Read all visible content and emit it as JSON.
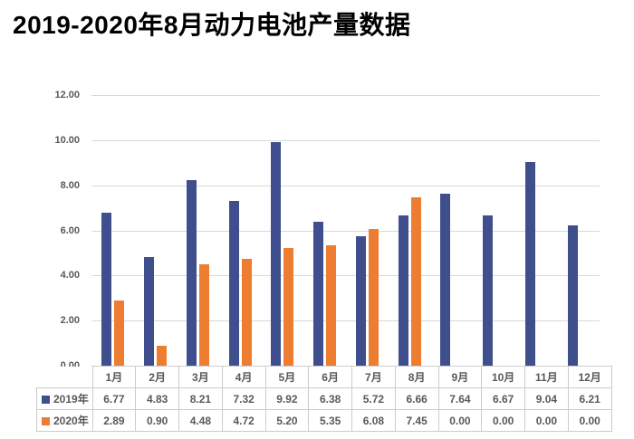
{
  "title": "2019-2020年8月动力电池产量数据",
  "colors": {
    "series_2019": "#3f4e8c",
    "series_2020": "#ed7d31",
    "gridline": "#d9d9d9",
    "axis_text": "#595959",
    "table_border": "#cccccc",
    "title_text": "#000000",
    "background": "#ffffff"
  },
  "chart_data": {
    "type": "bar",
    "title": "2019-2020年8月动力电池产量数据",
    "categories": [
      "1月",
      "2月",
      "3月",
      "4月",
      "5月",
      "6月",
      "7月",
      "8月",
      "9月",
      "10月",
      "11月",
      "12月"
    ],
    "series": [
      {
        "name": "2019年",
        "color": "#3f4e8c",
        "values": [
          6.77,
          4.83,
          8.21,
          7.32,
          9.92,
          6.38,
          5.72,
          6.66,
          7.64,
          6.67,
          9.04,
          6.21
        ]
      },
      {
        "name": "2020年",
        "color": "#ed7d31",
        "values": [
          2.89,
          0.9,
          4.48,
          4.72,
          5.2,
          5.35,
          6.08,
          7.45,
          0.0,
          0.0,
          0.0,
          0.0
        ]
      }
    ],
    "xlabel": "",
    "ylabel": "",
    "ylim": [
      0,
      12
    ],
    "ytick_step": 2,
    "ytick_labels": [
      "0.00",
      "2.00",
      "4.00",
      "6.00",
      "8.00",
      "10.00",
      "12.00"
    ],
    "grid": true,
    "legend_position": "data-table-left",
    "value_decimals": 2
  }
}
